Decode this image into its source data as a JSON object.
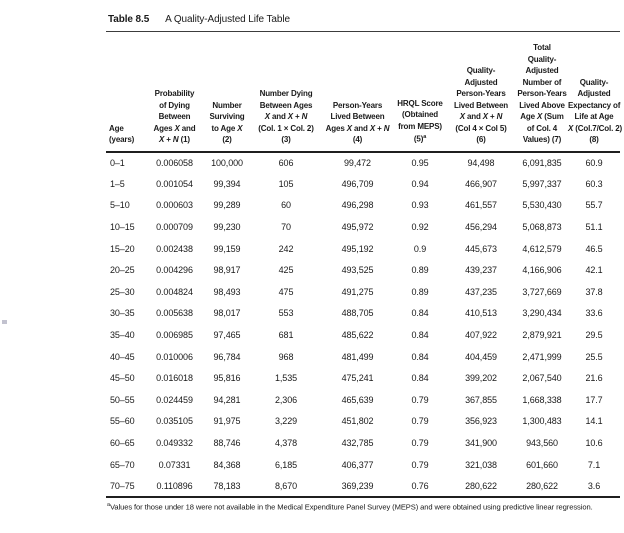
{
  "page": {
    "table_label": "Table 8.5",
    "table_title": "A Quality-Adjusted Life Table"
  },
  "table": {
    "columns": [
      {
        "id": "age",
        "align": "left",
        "lines": [
          "Age",
          "(years)"
        ]
      },
      {
        "id": "prob-dying",
        "lines": [
          "Probability",
          "of Dying",
          "Between",
          "Ages X and",
          "X + N (1)"
        ]
      },
      {
        "id": "number-surviving",
        "lines": [
          "Number",
          "Surviving",
          "to Age X",
          "(2)"
        ]
      },
      {
        "id": "number-dying",
        "lines": [
          "Number Dying",
          "Between Ages",
          "X and X + N",
          "(Col. 1 × Col. 2)",
          "(3)"
        ]
      },
      {
        "id": "person-years",
        "lines": [
          "Person-Years",
          "Lived Between",
          "Ages X and X + N",
          "(4)"
        ]
      },
      {
        "id": "hrql-score",
        "lines": [
          "HRQL Score",
          "(Obtained",
          "from MEPS)",
          "(5)"
        ],
        "sup": "a"
      },
      {
        "id": "qa-person-years",
        "lines": [
          "Quality-",
          "Adjusted",
          "Person-Years",
          "Lived Between",
          "X and X + N",
          "(Col 4 × Col 5)",
          "(6)"
        ]
      },
      {
        "id": "total-qa-person-years",
        "lines": [
          "Total",
          "Quality-",
          "Adjusted",
          "Number of",
          "Person-Years",
          "Lived Above",
          "Age X (Sum",
          "of Col. 4",
          "Values) (7)"
        ]
      },
      {
        "id": "qa-life-expectancy",
        "lines": [
          "Quality-",
          "Adjusted",
          "Expectancy of",
          "Life at Age",
          "X (Col.7/Col. 2)",
          "(8)"
        ]
      }
    ],
    "rows": [
      [
        "0–1",
        "0.006058",
        "100,000",
        "606",
        "99,472",
        "0.95",
        "94,498",
        "6,091,835",
        "60.9"
      ],
      [
        "1–5",
        "0.001054",
        "99,394",
        "105",
        "496,709",
        "0.94",
        "466,907",
        "5,997,337",
        "60.3"
      ],
      [
        "5–10",
        "0.000603",
        "99,289",
        "60",
        "496,298",
        "0.93",
        "461,557",
        "5,530,430",
        "55.7"
      ],
      [
        "10–15",
        "0.000709",
        "99,230",
        "70",
        "495,972",
        "0.92",
        "456,294",
        "5,068,873",
        "51.1"
      ],
      [
        "15–20",
        "0.002438",
        "99,159",
        "242",
        "495,192",
        "0.9",
        "445,673",
        "4,612,579",
        "46.5"
      ],
      [
        "20–25",
        "0.004296",
        "98,917",
        "425",
        "493,525",
        "0.89",
        "439,237",
        "4,166,906",
        "42.1"
      ],
      [
        "25–30",
        "0.004824",
        "98,493",
        "475",
        "491,275",
        "0.89",
        "437,235",
        "3,727,669",
        "37.8"
      ],
      [
        "30–35",
        "0.005638",
        "98,017",
        "553",
        "488,705",
        "0.84",
        "410,513",
        "3,290,434",
        "33.6"
      ],
      [
        "35–40",
        "0.006985",
        "97,465",
        "681",
        "485,622",
        "0.84",
        "407,922",
        "2,879,921",
        "29.5"
      ],
      [
        "40–45",
        "0.010006",
        "96,784",
        "968",
        "481,499",
        "0.84",
        "404,459",
        "2,471,999",
        "25.5"
      ],
      [
        "45–50",
        "0.016018",
        "95,816",
        "1,535",
        "475,241",
        "0.84",
        "399,202",
        "2,067,540",
        "21.6"
      ],
      [
        "50–55",
        "0.024459",
        "94,281",
        "2,306",
        "465,639",
        "0.79",
        "367,855",
        "1,668,338",
        "17.7"
      ],
      [
        "55–60",
        "0.035105",
        "91,975",
        "3,229",
        "451,802",
        "0.79",
        "356,923",
        "1,300,483",
        "14.1"
      ],
      [
        "60–65",
        "0.049332",
        "88,746",
        "4,378",
        "432,785",
        "0.79",
        "341,900",
        "943,560",
        "10.6"
      ],
      [
        "65–70",
        "0.07331",
        "84,368",
        "6,185",
        "406,377",
        "0.79",
        "321,038",
        "601,660",
        "7.1"
      ],
      [
        "70–75",
        "0.110896",
        "78,183",
        "8,670",
        "369,239",
        "0.76",
        "280,622",
        "280,622",
        "3.6"
      ]
    ]
  },
  "footnote": {
    "marker": "a",
    "text": "Values for those under 18 were not available in the Medical Expenditure Panel Survey (MEPS) and were obtained using predictive linear regression."
  },
  "colors": {
    "text": "#1a1a1a",
    "rule": "#1f1f1f",
    "background": "#ffffff"
  }
}
